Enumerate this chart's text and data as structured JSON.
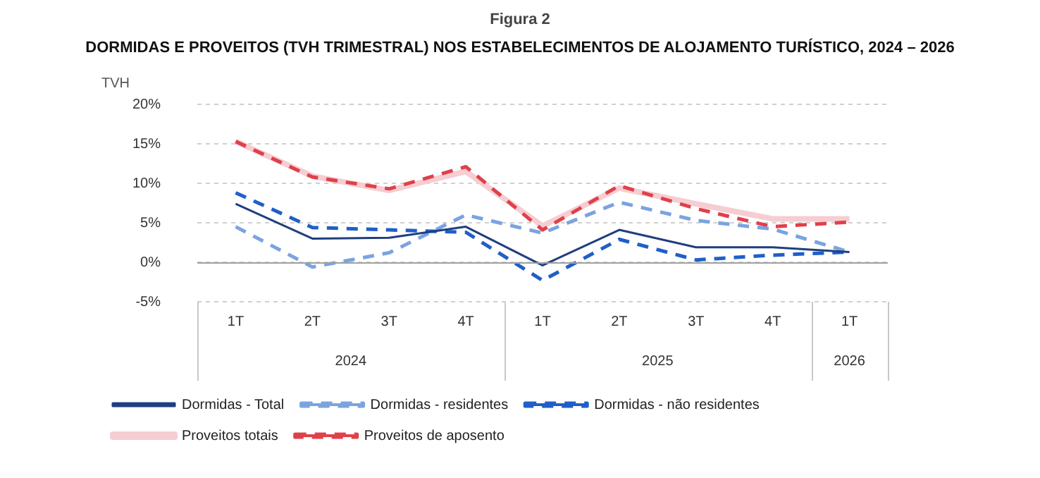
{
  "chart_data": {
    "type": "line",
    "subtitle": "Figura 2",
    "title": "DORMIDAS E PROVEITOS (TVH TRIMESTRAL) NOS ESTABELECIMENTOS DE ALOJAMENTO TURÍSTICO, 2024 – 2026",
    "ylabel": "TVH",
    "categories": [
      "1T",
      "2T",
      "3T",
      "4T",
      "1T",
      "2T",
      "3T",
      "4T",
      "1T"
    ],
    "annotations": [
      "2024",
      "2025",
      "2026"
    ],
    "series": [
      {
        "name": "Dormidas - Total",
        "color": "#1f3f7f",
        "line_style": "solid",
        "values": [
          7.4,
          3.0,
          3.1,
          4.5,
          -0.4,
          4.1,
          1.9,
          1.9,
          1.3
        ]
      },
      {
        "name": "Dormidas - residentes",
        "color": "#7aa3e0",
        "line_style": "dashed",
        "values": [
          4.5,
          -0.6,
          1.2,
          6.0,
          3.7,
          7.6,
          5.3,
          4.2,
          1.3
        ]
      },
      {
        "name": "Dormidas - não residentes",
        "color": "#1f5fc8",
        "line_style": "dashed",
        "values": [
          8.8,
          4.4,
          4.1,
          3.8,
          -2.3,
          2.9,
          0.3,
          0.9,
          1.3
        ]
      },
      {
        "name": "Proveitos totais",
        "color": "#f6cdd2",
        "line_style": "solid",
        "values": [
          15.3,
          10.9,
          9.1,
          11.5,
          4.6,
          9.4,
          7.4,
          5.5,
          5.5
        ]
      },
      {
        "name": "Proveitos de aposento",
        "color": "#e0404a",
        "line_style": "dashed",
        "values": [
          15.3,
          10.8,
          9.3,
          12.1,
          4.1,
          9.7,
          6.8,
          4.5,
          5.1
        ]
      }
    ],
    "ylim": [
      -5,
      20
    ],
    "yticks": [
      {
        "value": -5,
        "label": "-5%"
      },
      {
        "value": 0,
        "label": "0%"
      },
      {
        "value": 5,
        "label": "5%"
      },
      {
        "value": 10,
        "label": "10%"
      },
      {
        "value": 15,
        "label": "15%"
      },
      {
        "value": 20,
        "label": "20%"
      }
    ],
    "ref_lines": [
      {
        "axis": "y",
        "value": 0,
        "color": "#a0a0a0",
        "line_style": "solid"
      }
    ],
    "grid": "y",
    "legend": "bottom",
    "marker": "none"
  }
}
